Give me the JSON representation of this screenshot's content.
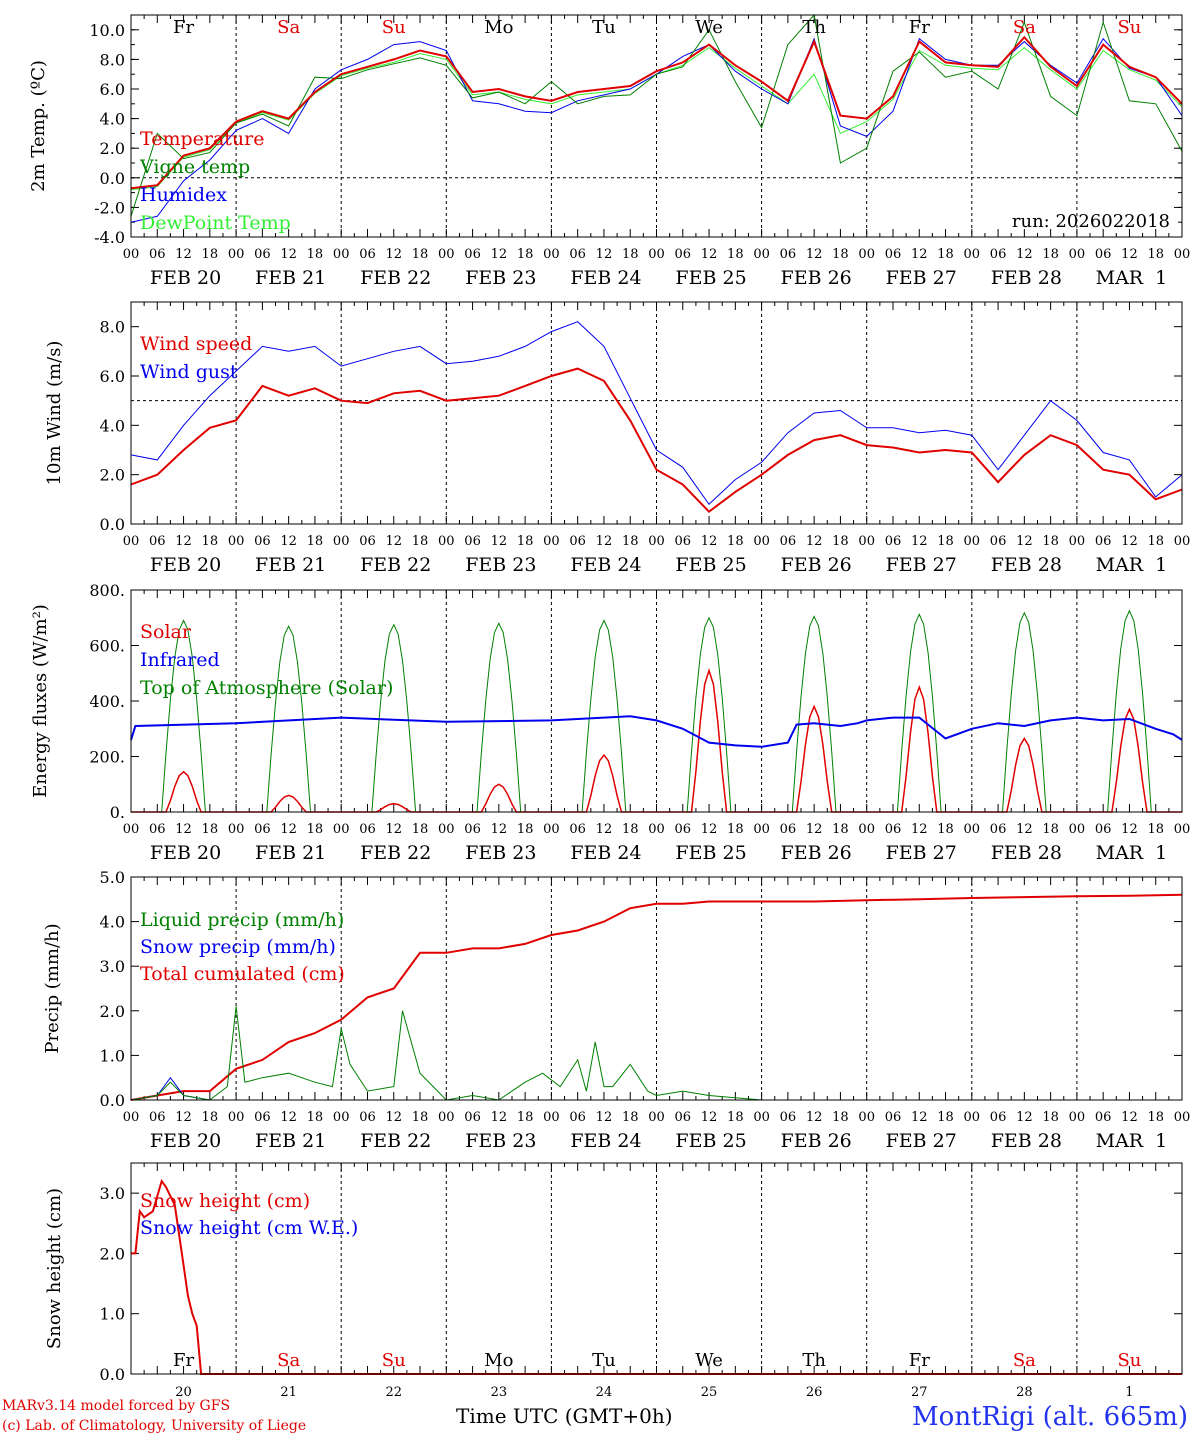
{
  "footer": {
    "credit_line1": "MARv3.14 model forced by GFS",
    "credit_line2": "(c) Lab. of Climatology, University of Liege",
    "time_label": "Time UTC (GMT+0h)",
    "station": "MontRigi (alt. 665m)"
  },
  "colors": {
    "red": "#e00000",
    "green": "#008000",
    "blue": "#0000ee",
    "lightgreen": "#33ee33",
    "sunday": "#e00000",
    "weekday": "#000000"
  },
  "hour_ticks": [
    "00",
    "06",
    "12",
    "18"
  ],
  "date_labels": [
    "FEB 20",
    "FEB 21",
    "FEB 22",
    "FEB 23",
    "FEB 24",
    "FEB 25",
    "FEB 26",
    "FEB 27",
    "FEB 28",
    "MAR  1"
  ],
  "day_of_week": [
    {
      "label": "Fr",
      "weekend": false
    },
    {
      "label": "Sa",
      "weekend": true
    },
    {
      "label": "Su",
      "weekend": true
    },
    {
      "label": "Mo",
      "weekend": false
    },
    {
      "label": "Tu",
      "weekend": false
    },
    {
      "label": "We",
      "weekend": false
    },
    {
      "label": "Th",
      "weekend": false
    },
    {
      "label": "Fr",
      "weekend": false
    },
    {
      "label": "Sa",
      "weekend": true
    },
    {
      "label": "Su",
      "weekend": true
    }
  ],
  "day_numbers": [
    "20",
    "21",
    "22",
    "23",
    "24",
    "25",
    "26",
    "27",
    "28",
    "1"
  ],
  "chart_data": [
    {
      "type": "line",
      "id": "temp",
      "ylabel": "2m Temp. (ºC)",
      "ylim": [
        -4,
        11
      ],
      "yticks": [
        -4,
        -2,
        0,
        2,
        4,
        6,
        8,
        10
      ],
      "tick_format": "f1",
      "ref_line": 0,
      "annotation": "run: 2026022018",
      "x_hours_range": [
        0,
        240
      ],
      "series": [
        {
          "name": "Temperature",
          "color": "red",
          "x": [
            0,
            6,
            12,
            18,
            24,
            30,
            36,
            42,
            48,
            54,
            60,
            66,
            72,
            78,
            84,
            90,
            96,
            102,
            108,
            114,
            120,
            126,
            132,
            138,
            144,
            150,
            156,
            162,
            168,
            174,
            180,
            186,
            192,
            198,
            204,
            210,
            216,
            222,
            228,
            234,
            240
          ],
          "values": [
            -0.7,
            -0.5,
            1.5,
            2.0,
            3.8,
            4.5,
            4.0,
            5.8,
            7.0,
            7.5,
            8.0,
            8.6,
            8.2,
            5.8,
            6.0,
            5.5,
            5.2,
            5.8,
            6.0,
            6.2,
            7.2,
            7.8,
            9.0,
            7.6,
            6.5,
            5.2,
            9.2,
            4.2,
            4.0,
            5.5,
            9.2,
            7.8,
            7.6,
            7.5,
            9.5,
            7.5,
            6.2,
            9.0,
            7.5,
            6.8,
            5.0
          ]
        },
        {
          "name": "Vigne temp",
          "color": "green",
          "x": [
            0,
            6,
            12,
            18,
            24,
            30,
            36,
            42,
            48,
            54,
            60,
            66,
            72,
            78,
            84,
            90,
            96,
            102,
            108,
            114,
            120,
            126,
            132,
            138,
            144,
            150,
            156,
            162,
            168,
            174,
            180,
            186,
            192,
            198,
            204,
            210,
            216,
            222,
            228,
            234,
            240
          ],
          "values": [
            -2.6,
            3.0,
            1.3,
            1.7,
            3.7,
            4.3,
            3.5,
            6.8,
            6.7,
            7.3,
            7.7,
            8.1,
            7.6,
            5.4,
            5.8,
            5.0,
            6.5,
            5.0,
            5.5,
            5.6,
            7.0,
            7.5,
            10.0,
            6.5,
            3.4,
            9.0,
            11.0,
            1.0,
            2.0,
            7.2,
            8.5,
            6.8,
            7.2,
            6.0,
            10.5,
            5.5,
            4.2,
            10.5,
            5.2,
            5.0,
            1.8
          ]
        },
        {
          "name": "Humidex",
          "color": "blue",
          "x": [
            0,
            6,
            12,
            18,
            24,
            30,
            36,
            42,
            48,
            54,
            60,
            66,
            72,
            78,
            84,
            90,
            96,
            102,
            108,
            114,
            120,
            126,
            132,
            138,
            144,
            150,
            156,
            162,
            168,
            174,
            180,
            186,
            192,
            198,
            204,
            210,
            216,
            222,
            228,
            234,
            240
          ],
          "values": [
            -3.0,
            -2.6,
            -0.2,
            1.2,
            3.2,
            4.0,
            3.0,
            6.0,
            7.3,
            8.0,
            9.0,
            9.2,
            8.6,
            5.2,
            5.0,
            4.5,
            4.4,
            5.2,
            5.6,
            6.0,
            7.0,
            8.2,
            9.0,
            7.2,
            6.0,
            5.0,
            9.4,
            3.5,
            2.8,
            4.5,
            9.4,
            8.0,
            7.6,
            7.6,
            9.2,
            7.6,
            6.4,
            9.4,
            7.4,
            6.8,
            4.2
          ]
        },
        {
          "name": "DewPoint Temp",
          "color": "lightgreen",
          "x": [
            0,
            6,
            12,
            18,
            24,
            30,
            36,
            42,
            48,
            54,
            60,
            66,
            72,
            78,
            84,
            90,
            96,
            102,
            108,
            114,
            120,
            126,
            132,
            138,
            144,
            150,
            156,
            162,
            168,
            174,
            180,
            186,
            192,
            198,
            204,
            210,
            216,
            222,
            228,
            234,
            240
          ],
          "values": [
            -0.8,
            -0.6,
            1.4,
            1.9,
            3.7,
            4.4,
            3.9,
            5.7,
            6.9,
            7.4,
            7.8,
            8.4,
            8.0,
            5.6,
            5.8,
            5.3,
            5.0,
            5.6,
            5.8,
            6.0,
            7.0,
            7.6,
            8.8,
            7.4,
            6.2,
            5.0,
            7.0,
            3.0,
            3.8,
            5.3,
            8.6,
            7.6,
            7.4,
            7.3,
            8.8,
            7.3,
            6.0,
            8.6,
            7.3,
            6.6,
            4.8
          ]
        }
      ]
    },
    {
      "type": "line",
      "id": "wind",
      "ylabel": "10m Wind (m/s)",
      "ylim": [
        0,
        9
      ],
      "yticks": [
        0,
        2,
        4,
        6,
        8
      ],
      "tick_format": "f1",
      "ref_line": 5,
      "x_hours_range": [
        0,
        240
      ],
      "series": [
        {
          "name": "Wind speed",
          "color": "red",
          "x": [
            0,
            6,
            12,
            18,
            24,
            30,
            36,
            42,
            48,
            54,
            60,
            66,
            72,
            78,
            84,
            90,
            96,
            102,
            108,
            114,
            120,
            126,
            132,
            138,
            144,
            150,
            156,
            162,
            168,
            174,
            180,
            186,
            192,
            198,
            204,
            210,
            216,
            222,
            228,
            234,
            240
          ],
          "values": [
            1.6,
            2.0,
            3.0,
            3.9,
            4.2,
            5.6,
            5.2,
            5.5,
            5.0,
            4.9,
            5.3,
            5.4,
            5.0,
            5.1,
            5.2,
            5.6,
            6.0,
            6.3,
            5.8,
            4.2,
            2.2,
            1.6,
            0.5,
            1.3,
            2.0,
            2.8,
            3.4,
            3.6,
            3.2,
            3.1,
            2.9,
            3.0,
            2.9,
            1.7,
            2.8,
            3.6,
            3.2,
            2.2,
            2.0,
            1.0,
            1.4
          ]
        },
        {
          "name": "Wind gust",
          "color": "blue",
          "x": [
            0,
            6,
            12,
            18,
            24,
            30,
            36,
            42,
            48,
            54,
            60,
            66,
            72,
            78,
            84,
            90,
            96,
            102,
            108,
            114,
            120,
            126,
            132,
            138,
            144,
            150,
            156,
            162,
            168,
            174,
            180,
            186,
            192,
            198,
            204,
            210,
            216,
            222,
            228,
            234,
            240
          ],
          "values": [
            2.8,
            2.6,
            4.0,
            5.2,
            6.2,
            7.2,
            7.0,
            7.2,
            6.4,
            6.7,
            7.0,
            7.2,
            6.5,
            6.6,
            6.8,
            7.2,
            7.8,
            8.2,
            7.2,
            5.1,
            3.0,
            2.3,
            0.8,
            1.8,
            2.5,
            3.7,
            4.5,
            4.6,
            3.9,
            3.9,
            3.7,
            3.8,
            3.6,
            2.2,
            3.6,
            5.0,
            4.2,
            2.9,
            2.6,
            1.1,
            2.0
          ]
        }
      ]
    },
    {
      "type": "line",
      "id": "energy",
      "ylabel": "Energy fluxes (W/m²)",
      "ylim": [
        0,
        800
      ],
      "yticks": [
        0,
        200,
        400,
        600,
        800
      ],
      "tick_format": "energy",
      "x_hours_range": [
        0,
        240
      ],
      "toa_peaks": [
        690,
        670,
        675,
        680,
        690,
        700,
        705,
        712,
        718,
        725
      ],
      "solar_peaks": [
        145,
        60,
        30,
        100,
        205,
        510,
        380,
        450,
        265,
        370
      ],
      "infrared": {
        "x": [
          0,
          1,
          24,
          48,
          72,
          96,
          108,
          114,
          116,
          120,
          126,
          132,
          138,
          144,
          150,
          152,
          156,
          162,
          166,
          168,
          174,
          180,
          186,
          192,
          198,
          204,
          210,
          216,
          222,
          228,
          234,
          238,
          240
        ],
        "values": [
          260,
          310,
          320,
          340,
          325,
          330,
          340,
          345,
          340,
          330,
          300,
          250,
          240,
          235,
          250,
          315,
          320,
          310,
          320,
          330,
          340,
          340,
          265,
          300,
          320,
          310,
          330,
          340,
          330,
          335,
          300,
          280,
          260
        ]
      },
      "series": [
        {
          "name": "Solar",
          "color": "red"
        },
        {
          "name": "Infrared",
          "color": "blue"
        },
        {
          "name": "Top of Atmosphere (Solar)",
          "color": "green"
        }
      ]
    },
    {
      "type": "line",
      "id": "precip",
      "ylabel": "Precip (mm/h)",
      "ylim": [
        0,
        5
      ],
      "yticks": [
        0,
        1,
        2,
        3,
        4,
        5
      ],
      "tick_format": "f1",
      "x_hours_range": [
        0,
        240
      ],
      "series": [
        {
          "name": "Liquid precip (mm/h)",
          "color": "green",
          "x": [
            0,
            6,
            9,
            12,
            18,
            22,
            24,
            26,
            30,
            36,
            42,
            46,
            48,
            50,
            54,
            60,
            62,
            66,
            72,
            78,
            84,
            90,
            94,
            98,
            102,
            104,
            106,
            108,
            110,
            114,
            118,
            120,
            126,
            132,
            138,
            144,
            240
          ],
          "values": [
            0,
            0.1,
            0.4,
            0.1,
            0,
            0.3,
            2.1,
            0.4,
            0.5,
            0.6,
            0.4,
            0.3,
            1.6,
            0.8,
            0.2,
            0.3,
            2.0,
            0.6,
            0,
            0.1,
            0,
            0.4,
            0.6,
            0.3,
            0.9,
            0.2,
            1.3,
            0.3,
            0.3,
            0.8,
            0.2,
            0.1,
            0.2,
            0.1,
            0.05,
            0,
            0
          ]
        },
        {
          "name": "Snow precip (mm/h)",
          "color": "blue",
          "x": [
            0,
            6,
            9,
            12,
            18,
            24,
            240
          ],
          "values": [
            0,
            0.1,
            0.5,
            0.1,
            0,
            0,
            0
          ]
        },
        {
          "name": "Total cumulated (cm)",
          "color": "red",
          "x": [
            0,
            6,
            12,
            18,
            24,
            30,
            36,
            42,
            48,
            54,
            60,
            66,
            72,
            78,
            84,
            90,
            96,
            102,
            108,
            114,
            120,
            126,
            132,
            144,
            156,
            168,
            180,
            192,
            204,
            216,
            228,
            240
          ],
          "values": [
            0,
            0.1,
            0.2,
            0.2,
            0.7,
            0.9,
            1.3,
            1.5,
            1.8,
            2.3,
            2.5,
            3.3,
            3.3,
            3.4,
            3.4,
            3.5,
            3.7,
            3.8,
            4.0,
            4.3,
            4.4,
            4.4,
            4.45,
            4.45,
            4.45,
            4.48,
            4.5,
            4.53,
            4.55,
            4.57,
            4.58,
            4.6
          ]
        }
      ]
    },
    {
      "type": "line",
      "id": "snow",
      "ylabel": "Snow height (cm)",
      "ylim": [
        0,
        3.5
      ],
      "yticks": [
        0,
        1,
        2,
        3
      ],
      "tick_format": "f1",
      "x_hours_range": [
        0,
        240
      ],
      "series": [
        {
          "name": "Snow height (cm)",
          "color": "red",
          "x": [
            0,
            1,
            2,
            3,
            5,
            7,
            8,
            10,
            11,
            12,
            13,
            14,
            15,
            16,
            17,
            18,
            240
          ],
          "values": [
            2.0,
            2.0,
            2.7,
            2.6,
            2.7,
            3.2,
            3.1,
            2.8,
            2.3,
            1.8,
            1.3,
            1.0,
            0.8,
            0,
            0,
            0,
            0
          ]
        },
        {
          "name": "Snow height (cm W.E.)",
          "color": "blue",
          "x": [],
          "values": []
        }
      ]
    }
  ]
}
